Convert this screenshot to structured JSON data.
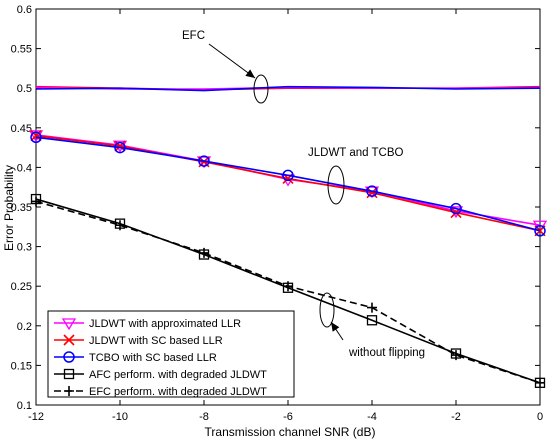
{
  "chart_data": {
    "type": "line",
    "title": "",
    "xlabel": "Transmission channel SNR (dB)",
    "ylabel": "Error Probability",
    "xlim": [
      -12,
      0
    ],
    "ylim": [
      0.1,
      0.6
    ],
    "xticks": [
      -12,
      -10,
      -8,
      -6,
      -4,
      -2,
      0
    ],
    "yticks": [
      0.1,
      0.15,
      0.2,
      0.25,
      0.3,
      0.35,
      0.4,
      0.45,
      0.5,
      0.55,
      0.6
    ],
    "xtick_labels": [
      "-12",
      "-10",
      "-8",
      "-6",
      "-4",
      "-2",
      "0"
    ],
    "ytick_labels": [
      "0.1",
      "0.15",
      "0.2",
      "0.25",
      "0.3",
      "0.35",
      "0.4",
      "0.45",
      "0.5",
      "0.55",
      "0.6"
    ],
    "grid": false,
    "legend_position": "bottom-left",
    "series": [
      {
        "name": "JLDWT with approximated LLR",
        "color": "#ff00ff",
        "marker": "triangle-down",
        "dash": "solid",
        "x": [
          -12,
          -10,
          -8,
          -6,
          -4,
          -2,
          0
        ],
        "y": [
          0.441,
          0.428,
          0.408,
          0.385,
          0.37,
          0.345,
          0.327
        ]
      },
      {
        "name": "JLDWT with SC based LLR",
        "color": "#ff0000",
        "marker": "x",
        "dash": "solid",
        "x": [
          -12,
          -10,
          -8,
          -6,
          -4,
          -2,
          0
        ],
        "y": [
          0.44,
          0.427,
          0.407,
          0.386,
          0.368,
          0.343,
          0.32
        ]
      },
      {
        "name": "TCBO with SC based LLR",
        "color": "#0000ff",
        "marker": "circle",
        "dash": "solid",
        "x": [
          -12,
          -10,
          -8,
          -6,
          -4,
          -2,
          0
        ],
        "y": [
          0.438,
          0.425,
          0.408,
          0.39,
          0.37,
          0.348,
          0.32
        ]
      },
      {
        "name": "AFC perform. with degraded JLDWT",
        "color": "#000000",
        "marker": "square",
        "dash": "solid",
        "x": [
          -12,
          -10,
          -8,
          -6,
          -4,
          -2,
          0
        ],
        "y": [
          0.36,
          0.329,
          0.29,
          0.248,
          0.207,
          0.165,
          0.128
        ]
      },
      {
        "name": "EFC perform. with degraded JLDWT",
        "color": "#000000",
        "marker": "plus",
        "dash": "dashed",
        "x": [
          -12,
          -10,
          -8,
          -6,
          -4,
          -2,
          0
        ],
        "y": [
          0.357,
          0.327,
          0.292,
          0.25,
          0.223,
          0.163,
          0.128
        ]
      }
    ],
    "efc_series": [
      {
        "color": "#ff0000",
        "x": [
          -12,
          -10,
          -8,
          -6,
          -4,
          -2,
          0
        ],
        "y": [
          0.502,
          0.5,
          0.498,
          0.5,
          0.5,
          0.5,
          0.502
        ]
      },
      {
        "color": "#ff00ff",
        "x": [
          -12,
          -10,
          -8,
          -6,
          -4,
          -2,
          0
        ],
        "y": [
          0.501,
          0.499,
          0.499,
          0.501,
          0.5,
          0.5,
          0.501
        ]
      },
      {
        "color": "#0000ff",
        "x": [
          -12,
          -10,
          -8,
          -6,
          -4,
          -2,
          0
        ],
        "y": [
          0.499,
          0.5,
          0.497,
          0.502,
          0.501,
          0.499,
          0.5
        ]
      }
    ],
    "annotations": [
      {
        "id": "efc",
        "text": "EFC"
      },
      {
        "id": "jldwt",
        "text": "JLDWT and TCBO"
      },
      {
        "id": "noflip",
        "text": "without flipping"
      }
    ]
  }
}
